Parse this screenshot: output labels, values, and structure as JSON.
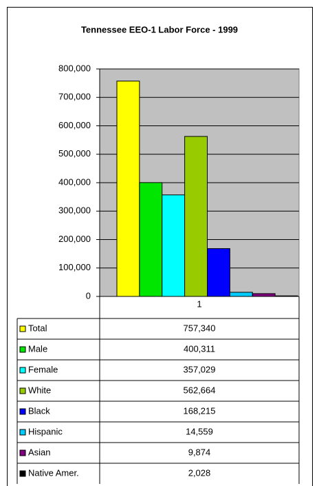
{
  "chart_data": {
    "type": "bar",
    "title": "Tennessee  EEO-1 Labor Force - 1999",
    "categories": [
      "1"
    ],
    "series": [
      {
        "name": "Total",
        "color": "#ffff00",
        "values": [
          757340
        ],
        "value_labels": [
          "757,340"
        ]
      },
      {
        "name": "Male",
        "color": "#00e600",
        "values": [
          400311
        ],
        "value_labels": [
          "400,311"
        ]
      },
      {
        "name": "Female",
        "color": "#00ffff",
        "values": [
          357029
        ],
        "value_labels": [
          "357,029"
        ]
      },
      {
        "name": "White",
        "color": "#99cc00",
        "values": [
          562664
        ],
        "value_labels": [
          "562,664"
        ]
      },
      {
        "name": "Black",
        "color": "#0000ff",
        "values": [
          168215
        ],
        "value_labels": [
          "168,215"
        ]
      },
      {
        "name": "Hispanic",
        "color": "#00ccff",
        "values": [
          14559
        ],
        "value_labels": [
          "14,559"
        ]
      },
      {
        "name": "Asian",
        "color": "#800080",
        "values": [
          9874
        ],
        "value_labels": [
          "9,874"
        ]
      },
      {
        "name": "Native Amer.",
        "color": "#000000",
        "values": [
          2028
        ],
        "value_labels": [
          "2,028"
        ]
      }
    ],
    "ylim": [
      0,
      800000
    ],
    "yticks": [
      0,
      {
        "value": 100000,
        "label": "100,000"
      },
      {
        "value": 200000,
        "label": "200,000"
      },
      {
        "value": 300000,
        "label": "300,000"
      },
      {
        "value": 400000,
        "label": "400,000"
      },
      {
        "value": 500000,
        "label": "500,000"
      },
      {
        "value": 600000,
        "label": "600,000"
      },
      {
        "value": 700000,
        "label": "700,000"
      },
      {
        "value": 800000,
        "label": "800,000"
      }
    ],
    "grid": true,
    "plot_background": "#c0c0c0"
  }
}
